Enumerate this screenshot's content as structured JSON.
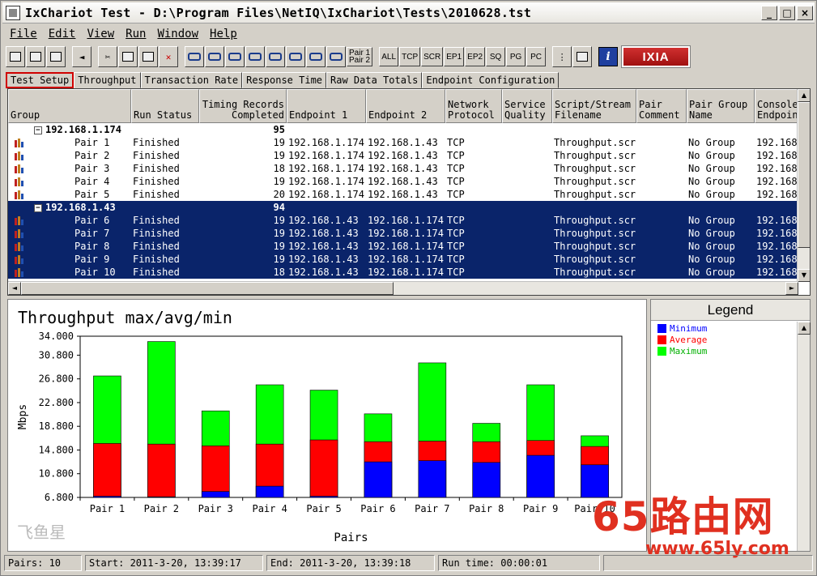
{
  "window": {
    "title": "IxChariot Test - D:\\Program Files\\NetIQ\\IxChariot\\Tests\\2010628.tst"
  },
  "menu": [
    "File",
    "Edit",
    "View",
    "Run",
    "Window",
    "Help"
  ],
  "toolbar": {
    "text_buttons": [
      "ALL",
      "TCP",
      "SCR",
      "EP1",
      "EP2",
      "SQ",
      "PG",
      "PC"
    ],
    "pair_button": [
      "Pair 1",
      "Pair 2"
    ],
    "brand": "IXIA"
  },
  "tabs": [
    "Test Setup",
    "Throughput",
    "Transaction Rate",
    "Response Time",
    "Raw Data Totals",
    "Endpoint Configuration"
  ],
  "grid": {
    "columns": [
      "Group",
      "Run Status",
      "Timing Records\nCompleted",
      "Endpoint 1",
      "Endpoint 2",
      "Network\nProtocol",
      "Service\nQuality",
      "Script/Stream\nFilename",
      "Pair\nComment",
      "Pair Group\nName",
      "Console\nEndpoint"
    ],
    "groups": [
      {
        "name": "192.168.1.174",
        "records": "95",
        "selected": false,
        "pairs": [
          {
            "name": "Pair 1",
            "status": "Finished",
            "records": "19",
            "ep1": "192.168.1.174",
            "ep2": "192.168.1.43",
            "proto": "TCP",
            "qos": "",
            "script": "Throughput.scr",
            "comment": "",
            "group": "No Group",
            "console": "192.168"
          },
          {
            "name": "Pair 2",
            "status": "Finished",
            "records": "19",
            "ep1": "192.168.1.174",
            "ep2": "192.168.1.43",
            "proto": "TCP",
            "qos": "",
            "script": "Throughput.scr",
            "comment": "",
            "group": "No Group",
            "console": "192.168"
          },
          {
            "name": "Pair 3",
            "status": "Finished",
            "records": "18",
            "ep1": "192.168.1.174",
            "ep2": "192.168.1.43",
            "proto": "TCP",
            "qos": "",
            "script": "Throughput.scr",
            "comment": "",
            "group": "No Group",
            "console": "192.168"
          },
          {
            "name": "Pair 4",
            "status": "Finished",
            "records": "19",
            "ep1": "192.168.1.174",
            "ep2": "192.168.1.43",
            "proto": "TCP",
            "qos": "",
            "script": "Throughput.scr",
            "comment": "",
            "group": "No Group",
            "console": "192.168"
          },
          {
            "name": "Pair 5",
            "status": "Finished",
            "records": "20",
            "ep1": "192.168.1.174",
            "ep2": "192.168.1.43",
            "proto": "TCP",
            "qos": "",
            "script": "Throughput.scr",
            "comment": "",
            "group": "No Group",
            "console": "192.168"
          }
        ]
      },
      {
        "name": "192.168.1.43",
        "records": "94",
        "selected": true,
        "pairs": [
          {
            "name": "Pair 6",
            "status": "Finished",
            "records": "19",
            "ep1": "192.168.1.43",
            "ep2": "192.168.1.174",
            "proto": "TCP",
            "qos": "",
            "script": "Throughput.scr",
            "comment": "",
            "group": "No Group",
            "console": "192.168"
          },
          {
            "name": "Pair 7",
            "status": "Finished",
            "records": "19",
            "ep1": "192.168.1.43",
            "ep2": "192.168.1.174",
            "proto": "TCP",
            "qos": "",
            "script": "Throughput.scr",
            "comment": "",
            "group": "No Group",
            "console": "192.168"
          },
          {
            "name": "Pair 8",
            "status": "Finished",
            "records": "19",
            "ep1": "192.168.1.43",
            "ep2": "192.168.1.174",
            "proto": "TCP",
            "qos": "",
            "script": "Throughput.scr",
            "comment": "",
            "group": "No Group",
            "console": "192.168"
          },
          {
            "name": "Pair 9",
            "status": "Finished",
            "records": "19",
            "ep1": "192.168.1.43",
            "ep2": "192.168.1.174",
            "proto": "TCP",
            "qos": "",
            "script": "Throughput.scr",
            "comment": "",
            "group": "No Group",
            "console": "192.168"
          },
          {
            "name": "Pair 10",
            "status": "Finished",
            "records": "18",
            "ep1": "192.168.1.43",
            "ep2": "192.168.1.174",
            "proto": "TCP",
            "qos": "",
            "script": "Throughput.scr",
            "comment": "",
            "group": "No Group",
            "console": "192.168"
          }
        ]
      }
    ]
  },
  "chart_data": {
    "type": "bar",
    "title": "Throughput max/avg/min",
    "xlabel": "Pairs",
    "ylabel": "Mbps",
    "ylim": [
      6.8,
      34.0
    ],
    "yticks": [
      "34.000",
      "30.800",
      "26.800",
      "22.800",
      "18.800",
      "14.800",
      "10.800",
      "6.800"
    ],
    "ytick_values": [
      34.0,
      30.8,
      26.8,
      22.8,
      18.8,
      14.8,
      10.8,
      6.8
    ],
    "categories": [
      "Pair 1",
      "Pair 2",
      "Pair 3",
      "Pair 4",
      "Pair 5",
      "Pair 6",
      "Pair 7",
      "Pair 8",
      "Pair 9",
      "Pair 10"
    ],
    "stacked_overlay": true,
    "series": [
      {
        "name": "Maximum",
        "color": "#00ff00",
        "values": [
          27.3,
          33.1,
          21.4,
          25.8,
          24.9,
          20.9,
          29.5,
          19.3,
          25.8,
          17.2
        ]
      },
      {
        "name": "Average",
        "color": "#ff0000",
        "values": [
          15.9,
          15.8,
          15.5,
          15.8,
          16.5,
          16.2,
          16.3,
          16.2,
          16.4,
          15.4
        ]
      },
      {
        "name": "Minimum",
        "color": "#0000ff",
        "values": [
          7.0,
          6.9,
          7.8,
          8.7,
          7.0,
          12.8,
          13.0,
          12.7,
          13.9,
          12.3
        ]
      }
    ],
    "grid": false,
    "legend": "right"
  },
  "legend": {
    "title": "Legend",
    "items": [
      {
        "label": "Minimum",
        "color": "#0000ff"
      },
      {
        "label": "Average",
        "color": "#ff0000"
      },
      {
        "label": "Maximum",
        "color": "#00ff00"
      }
    ]
  },
  "status": {
    "pairs": "Pairs: 10",
    "start": "Start: 2011-3-20, 13:39:17",
    "end": "End: 2011-3-20, 13:39:18",
    "runtime": "Run time: 00:00:01"
  },
  "watermark": {
    "big": "65路由网",
    "url": "www.65ly.com",
    "left": "飞鱼星"
  }
}
